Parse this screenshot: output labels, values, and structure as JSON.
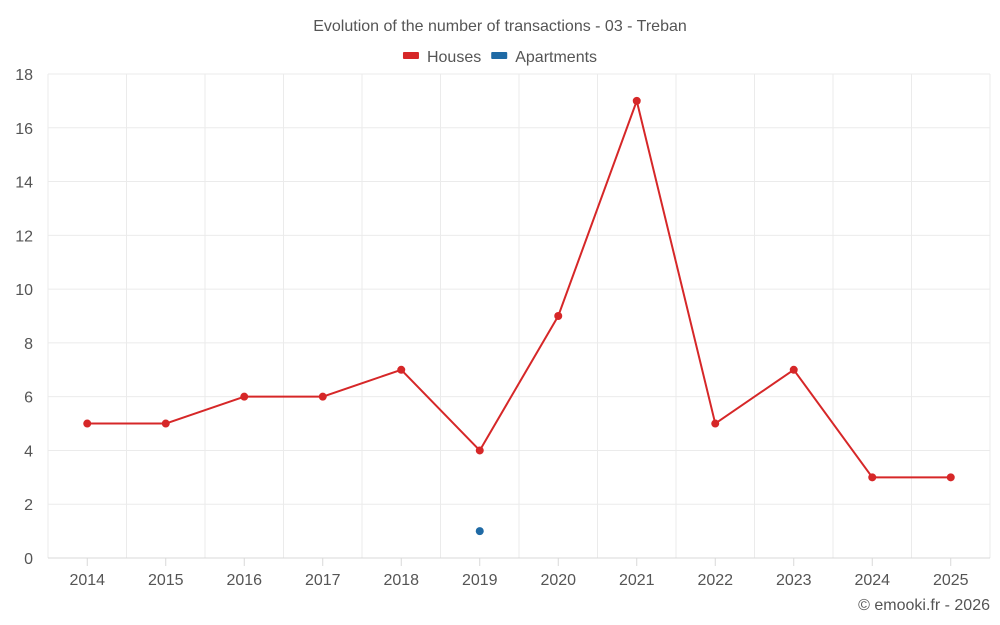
{
  "chart_data": {
    "type": "line",
    "title": "Evolution of the number of transactions - 03 - Treban",
    "xlabel": "",
    "ylabel": "",
    "categories": [
      "2014",
      "2015",
      "2016",
      "2017",
      "2018",
      "2019",
      "2020",
      "2021",
      "2022",
      "2023",
      "2024",
      "2025"
    ],
    "ylim": [
      0,
      18
    ],
    "yticks": [
      0,
      2,
      4,
      6,
      8,
      10,
      12,
      14,
      16,
      18
    ],
    "grid": true,
    "legend_position": "top-center",
    "series": [
      {
        "name": "Houses",
        "color": "#d62728",
        "values": [
          5,
          5,
          6,
          6,
          7,
          4,
          9,
          17,
          5,
          7,
          3,
          3
        ]
      },
      {
        "name": "Apartments",
        "color": "#1f6aa5",
        "values": [
          null,
          null,
          null,
          null,
          null,
          1,
          null,
          null,
          null,
          null,
          null,
          null
        ]
      }
    ]
  },
  "footer": {
    "credit": "© emooki.fr - 2026"
  }
}
